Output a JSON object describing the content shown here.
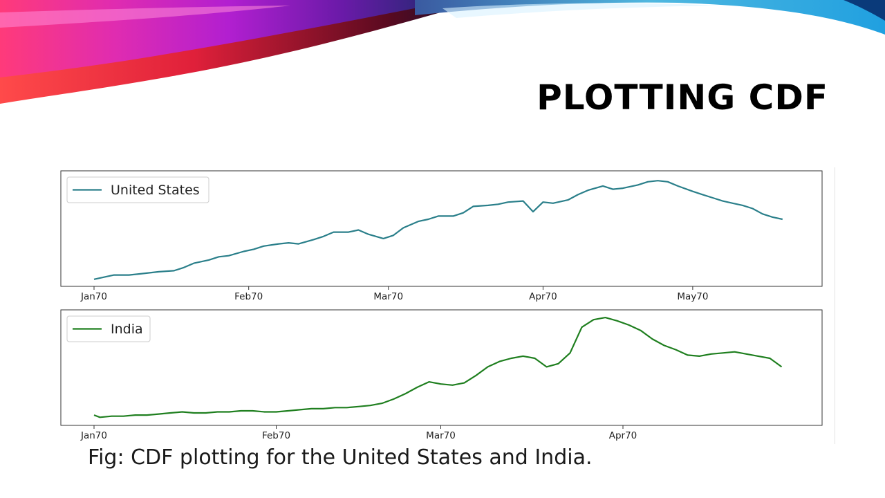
{
  "slide": {
    "title": "PLOTTING CDF",
    "caption": "Fig: CDF plotting for the United States and India."
  },
  "colors": {
    "us_line": "#2a7f8a",
    "india_line": "#1f7f1f",
    "frame": "#333333"
  },
  "chart_data": [
    {
      "type": "line",
      "title": "",
      "legend_position": "top-left",
      "grid": false,
      "xlabel": "",
      "ylabel": "",
      "y_axis_labels_shown": false,
      "xlim": [
        "1970-01-01",
        "1970-05-20"
      ],
      "ylim": [
        0,
        1
      ],
      "xticks": [
        {
          "label": "Jan70",
          "date": "1970-01-01"
        },
        {
          "label": "Feb70",
          "date": "1970-02-01"
        },
        {
          "label": "Mar70",
          "date": "1970-03-01"
        },
        {
          "label": "Apr70",
          "date": "1970-04-01"
        },
        {
          "label": "May70",
          "date": "1970-05-01"
        }
      ],
      "series": [
        {
          "name": "United States",
          "x": [
            "1970-01-01",
            "1970-01-03",
            "1970-01-05",
            "1970-01-08",
            "1970-01-10",
            "1970-01-12",
            "1970-01-14",
            "1970-01-17",
            "1970-01-19",
            "1970-01-21",
            "1970-01-24",
            "1970-01-26",
            "1970-01-28",
            "1970-01-31",
            "1970-02-02",
            "1970-02-04",
            "1970-02-07",
            "1970-02-09",
            "1970-02-11",
            "1970-02-14",
            "1970-02-16",
            "1970-02-18",
            "1970-02-21",
            "1970-02-23",
            "1970-02-25",
            "1970-02-28",
            "1970-03-02",
            "1970-03-04",
            "1970-03-07",
            "1970-03-09",
            "1970-03-11",
            "1970-03-14",
            "1970-03-16",
            "1970-03-18",
            "1970-03-21",
            "1970-03-23",
            "1970-03-25",
            "1970-03-28",
            "1970-03-30",
            "1970-04-01",
            "1970-04-03",
            "1970-04-06",
            "1970-04-08",
            "1970-04-10",
            "1970-04-13",
            "1970-04-15",
            "1970-04-17",
            "1970-04-20",
            "1970-04-22",
            "1970-04-24",
            "1970-04-26",
            "1970-04-28",
            "1970-05-01",
            "1970-05-03",
            "1970-05-05",
            "1970-05-07",
            "1970-05-09",
            "1970-05-11",
            "1970-05-13",
            "1970-05-15",
            "1970-05-17",
            "1970-05-19"
          ],
          "y": [
            0.04,
            0.06,
            0.08,
            0.08,
            0.09,
            0.1,
            0.11,
            0.12,
            0.15,
            0.19,
            0.22,
            0.25,
            0.26,
            0.3,
            0.32,
            0.35,
            0.37,
            0.38,
            0.37,
            0.41,
            0.44,
            0.48,
            0.48,
            0.5,
            0.46,
            0.42,
            0.45,
            0.52,
            0.58,
            0.6,
            0.63,
            0.63,
            0.66,
            0.72,
            0.73,
            0.74,
            0.76,
            0.77,
            0.67,
            0.76,
            0.75,
            0.78,
            0.83,
            0.87,
            0.91,
            0.88,
            0.89,
            0.92,
            0.95,
            0.96,
            0.95,
            0.91,
            0.86,
            0.83,
            0.8,
            0.77,
            0.75,
            0.73,
            0.7,
            0.65,
            0.62,
            0.6
          ]
        }
      ]
    },
    {
      "type": "line",
      "title": "",
      "legend_position": "top-left",
      "grid": false,
      "xlabel": "",
      "ylabel": "",
      "y_axis_labels_shown": false,
      "xlim": [
        "1970-01-01",
        "1970-04-29"
      ],
      "ylim": [
        0,
        1
      ],
      "xticks": [
        {
          "label": "Jan70",
          "date": "1970-01-01"
        },
        {
          "label": "Feb70",
          "date": "1970-02-01"
        },
        {
          "label": "Mar70",
          "date": "1970-03-01"
        },
        {
          "label": "Apr70",
          "date": "1970-04-01"
        }
      ],
      "series": [
        {
          "name": "India",
          "x": [
            "1970-01-01",
            "1970-01-02",
            "1970-01-04",
            "1970-01-06",
            "1970-01-08",
            "1970-01-10",
            "1970-01-12",
            "1970-01-14",
            "1970-01-16",
            "1970-01-18",
            "1970-01-20",
            "1970-01-22",
            "1970-01-24",
            "1970-01-26",
            "1970-01-28",
            "1970-01-30",
            "1970-02-01",
            "1970-02-03",
            "1970-02-05",
            "1970-02-07",
            "1970-02-09",
            "1970-02-11",
            "1970-02-13",
            "1970-02-15",
            "1970-02-17",
            "1970-02-19",
            "1970-02-21",
            "1970-02-23",
            "1970-02-25",
            "1970-02-27",
            "1970-03-01",
            "1970-03-03",
            "1970-03-05",
            "1970-03-07",
            "1970-03-09",
            "1970-03-11",
            "1970-03-13",
            "1970-03-15",
            "1970-03-17",
            "1970-03-19",
            "1970-03-21",
            "1970-03-23",
            "1970-03-25",
            "1970-03-27",
            "1970-03-29",
            "1970-03-31",
            "1970-04-02",
            "1970-04-04",
            "1970-04-06",
            "1970-04-08",
            "1970-04-10",
            "1970-04-12",
            "1970-04-14",
            "1970-04-16",
            "1970-04-18",
            "1970-04-20",
            "1970-04-22",
            "1970-04-24",
            "1970-04-26",
            "1970-04-28"
          ],
          "y": [
            0.07,
            0.05,
            0.06,
            0.06,
            0.07,
            0.07,
            0.08,
            0.09,
            0.1,
            0.09,
            0.09,
            0.1,
            0.1,
            0.11,
            0.11,
            0.1,
            0.1,
            0.11,
            0.12,
            0.13,
            0.13,
            0.14,
            0.14,
            0.15,
            0.16,
            0.18,
            0.22,
            0.27,
            0.33,
            0.38,
            0.36,
            0.35,
            0.37,
            0.44,
            0.52,
            0.57,
            0.6,
            0.62,
            0.6,
            0.52,
            0.55,
            0.65,
            0.89,
            0.96,
            0.98,
            0.95,
            0.91,
            0.86,
            0.78,
            0.72,
            0.68,
            0.63,
            0.62,
            0.64,
            0.65,
            0.66,
            0.64,
            0.62,
            0.6,
            0.52
          ]
        }
      ]
    }
  ]
}
